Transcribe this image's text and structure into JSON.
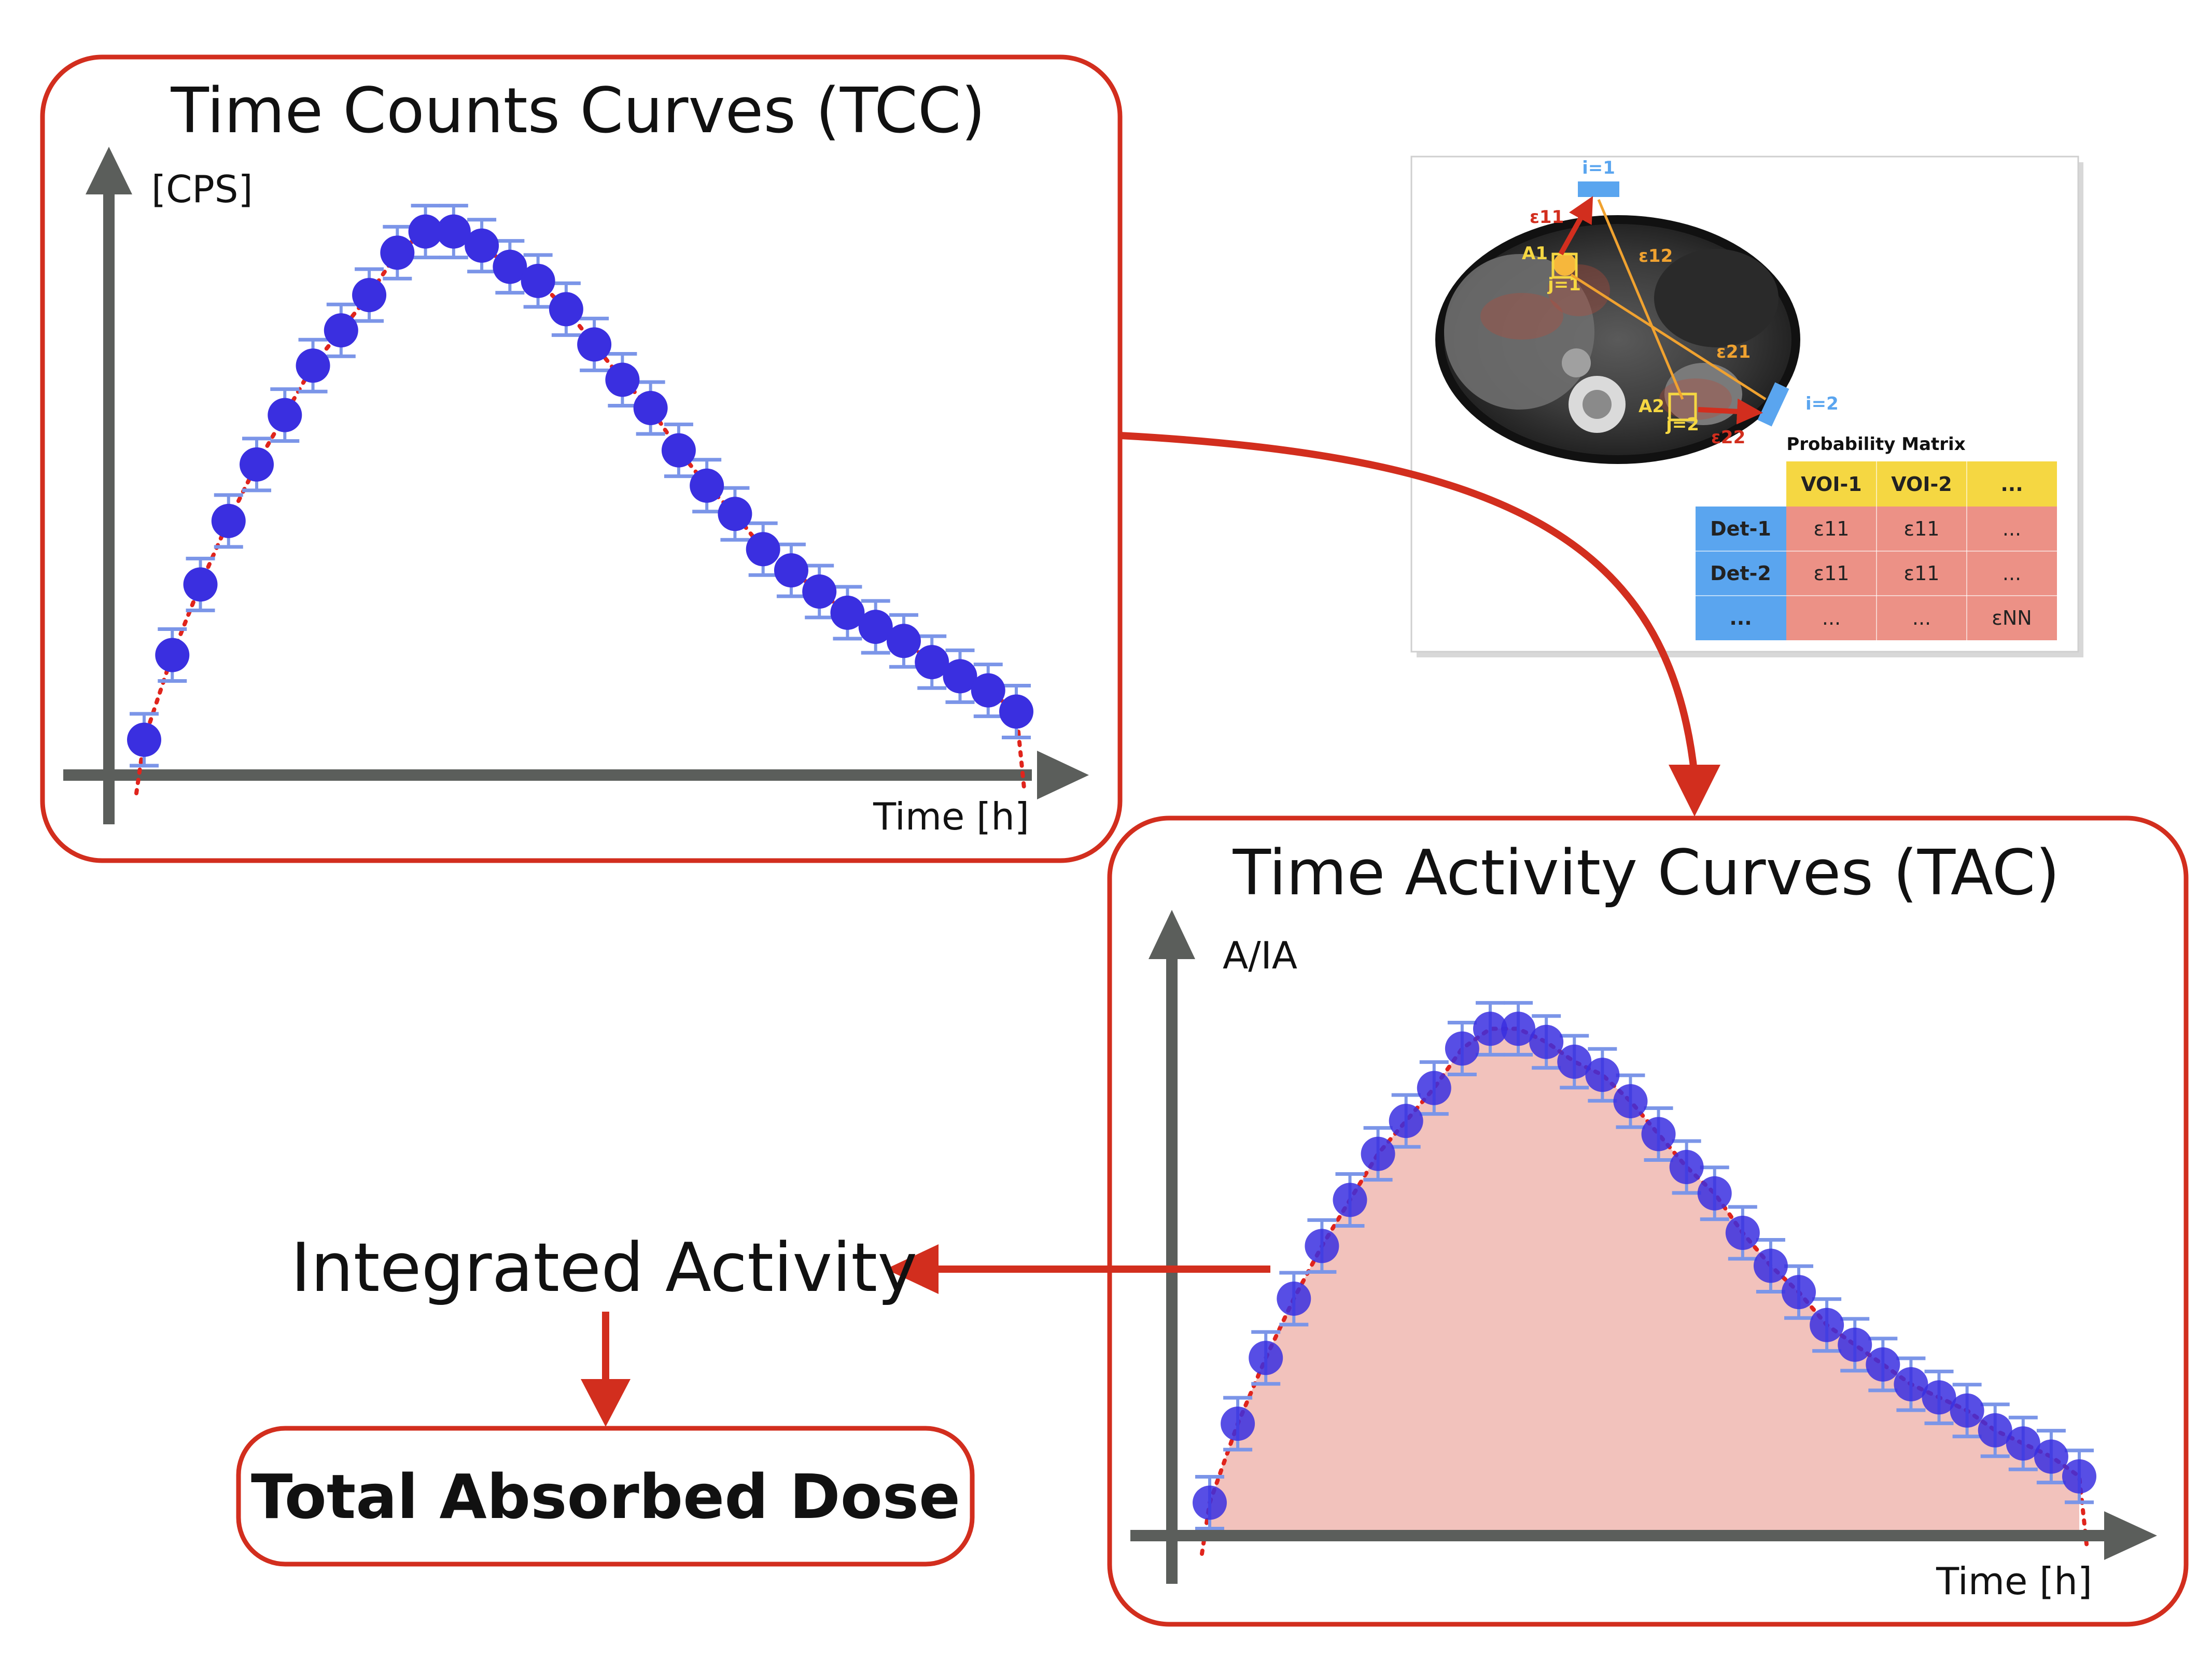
{
  "tcc": {
    "title": "Time Counts Curves (TCC)",
    "y_label": "[CPS]",
    "x_label": "Time [h]"
  },
  "tac": {
    "title": "Time Activity Curves (TAC)",
    "y_label": "A/IA",
    "x_label": "Time [h]"
  },
  "integrated_activity": "Integrated Activity",
  "total_absorbed_dose": "Total Absorbed Dose",
  "ct_panel": {
    "labels": {
      "eps11": "ε11",
      "eps12": "ε12",
      "eps21": "ε21",
      "eps22": "ε22",
      "a1": "A1",
      "a2": "A2",
      "i1": "i=1",
      "i2": "i=2",
      "j1": "j=1",
      "j2": "j=2"
    },
    "matrix_title": "Probability Matrix",
    "columns": [
      "VOI-1",
      "VOI-2",
      "..."
    ],
    "rows": [
      {
        "label": "Det-1",
        "cells": [
          "ε11",
          "ε11",
          "..."
        ]
      },
      {
        "label": "Det-2",
        "cells": [
          "ε11",
          "ε11",
          "..."
        ]
      },
      {
        "label": "...",
        "cells": [
          "...",
          "...",
          "εNN"
        ]
      }
    ]
  },
  "colors": {
    "frame_red": "#d22e1e",
    "axis_gray": "#5b5e5b",
    "point_blue": "#3a2fe0",
    "errorbar_blue": "#7b95e8",
    "fit_red": "#e0241c",
    "area_fill": "#f0b7b0",
    "header_yellow": "#f5d742",
    "row_blue": "#5aa5ef",
    "cell_pink": "#ec9186",
    "ct_orange": "#f0a230"
  },
  "chart_data": [
    {
      "type": "scatter",
      "title": "Time Counts Curves (TCC)",
      "xlabel": "Time [h]",
      "ylabel": "[CPS]",
      "x": [
        0,
        1,
        2,
        3,
        4,
        5,
        6,
        7,
        8,
        9,
        10,
        11,
        12,
        13,
        14,
        15,
        16,
        17,
        18,
        19,
        20,
        21,
        22,
        23,
        24,
        25,
        26,
        27,
        28,
        29,
        30,
        31
      ],
      "y": [
        0.05,
        0.17,
        0.27,
        0.36,
        0.44,
        0.51,
        0.58,
        0.63,
        0.68,
        0.74,
        0.77,
        0.77,
        0.75,
        0.72,
        0.7,
        0.66,
        0.61,
        0.56,
        0.52,
        0.46,
        0.41,
        0.37,
        0.32,
        0.29,
        0.26,
        0.23,
        0.21,
        0.19,
        0.16,
        0.14,
        0.12,
        0.09
      ],
      "fit": "dotted red line",
      "error_bars": true,
      "grid": false
    },
    {
      "type": "area",
      "title": "Time Activity Curves (TAC)",
      "xlabel": "Time [h]",
      "ylabel": "A/IA",
      "x": [
        0,
        1,
        2,
        3,
        4,
        5,
        6,
        7,
        8,
        9,
        10,
        11,
        12,
        13,
        14,
        15,
        16,
        17,
        18,
        19,
        20,
        21,
        22,
        23,
        24,
        25,
        26,
        27,
        28,
        29,
        30,
        31
      ],
      "y": [
        0.05,
        0.17,
        0.27,
        0.36,
        0.44,
        0.51,
        0.58,
        0.63,
        0.68,
        0.74,
        0.77,
        0.77,
        0.75,
        0.72,
        0.7,
        0.66,
        0.61,
        0.56,
        0.52,
        0.46,
        0.41,
        0.37,
        0.32,
        0.29,
        0.26,
        0.23,
        0.21,
        0.19,
        0.16,
        0.14,
        0.12,
        0.09
      ],
      "fit": "dotted red line",
      "area_under_curve": true,
      "error_bars": true,
      "grid": false
    }
  ]
}
